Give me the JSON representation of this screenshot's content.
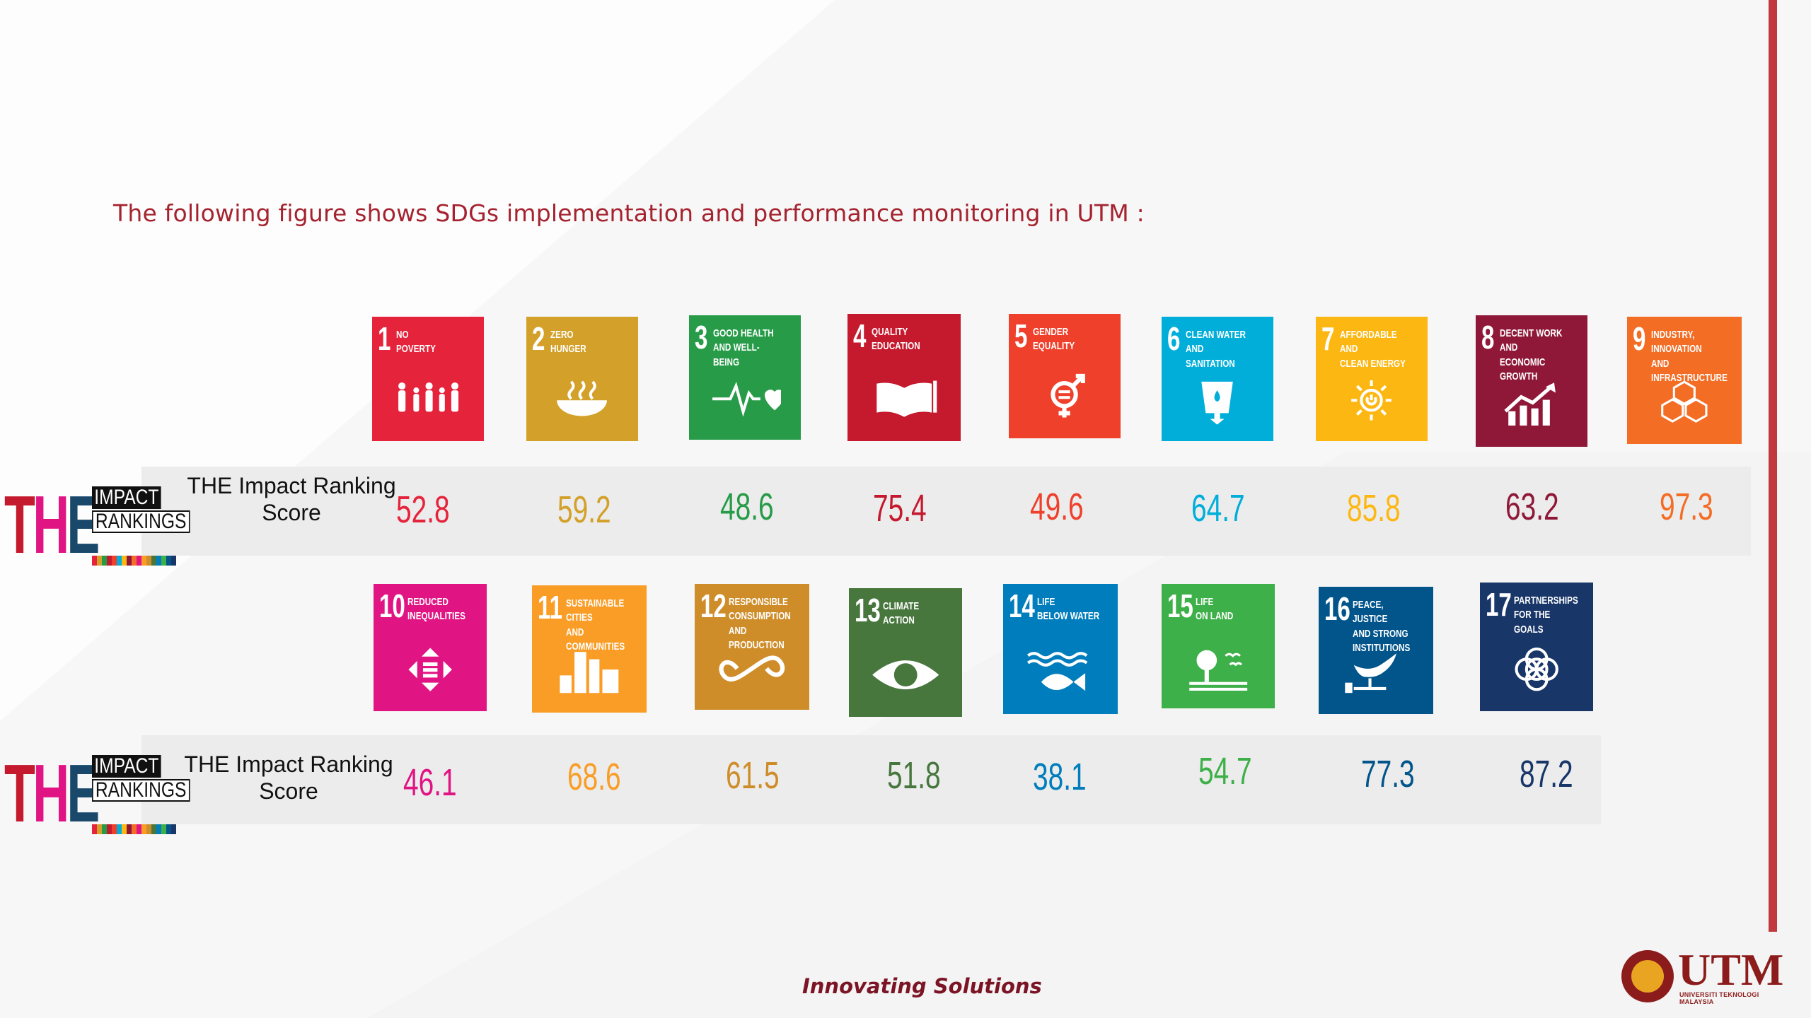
{
  "intro": "The following figure shows SDGs implementation and performance monitoring in UTM :",
  "rank_label": "THE Impact Ranking\nScore",
  "logo": {
    "the": "THE",
    "impact": "IMPACT",
    "rankings": "RANKINGS"
  },
  "sdgs": [
    {
      "num": "1",
      "label": "NO\nPOVERTY",
      "score": "52.8",
      "color": "#e5243b",
      "icon": "family-icon"
    },
    {
      "num": "2",
      "label": "ZERO\nHUNGER",
      "score": "59.2",
      "color": "#d3a029",
      "icon": "bowl-icon"
    },
    {
      "num": "3",
      "label": "GOOD HEALTH\nAND WELL-BEING",
      "score": "48.6",
      "color": "#279b48",
      "icon": "heartbeat-icon"
    },
    {
      "num": "4",
      "label": "QUALITY\nEDUCATION",
      "score": "75.4",
      "color": "#c5192d",
      "icon": "book-icon"
    },
    {
      "num": "5",
      "label": "GENDER\nEQUALITY",
      "score": "49.6",
      "color": "#ef402c",
      "icon": "gender-icon"
    },
    {
      "num": "6",
      "label": "CLEAN WATER\nAND SANITATION",
      "score": "64.7",
      "color": "#00aed9",
      "icon": "water-glass-icon"
    },
    {
      "num": "7",
      "label": "AFFORDABLE AND\nCLEAN ENERGY",
      "score": "85.8",
      "color": "#fdb713",
      "icon": "sun-power-icon"
    },
    {
      "num": "8",
      "label": "DECENT WORK AND\nECONOMIC GROWTH",
      "score": "63.2",
      "color": "#8f1838",
      "icon": "growth-chart-icon"
    },
    {
      "num": "9",
      "label": "INDUSTRY, INNOVATION\nAND INFRASTRUCTURE",
      "score": "97.3",
      "color": "#f36d25",
      "icon": "cubes-icon"
    },
    {
      "num": "10",
      "label": "REDUCED\nINEQUALITIES",
      "score": "46.1",
      "color": "#e11484",
      "icon": "equality-arrows-icon"
    },
    {
      "num": "11",
      "label": "SUSTAINABLE CITIES\nAND COMMUNITIES",
      "score": "68.6",
      "color": "#f99d26",
      "icon": "city-icon"
    },
    {
      "num": "12",
      "label": "RESPONSIBLE\nCONSUMPTION\nAND PRODUCTION",
      "score": "61.5",
      "color": "#cf8d2a",
      "icon": "infinity-icon"
    },
    {
      "num": "13",
      "label": "CLIMATE\nACTION",
      "score": "51.8",
      "color": "#48773e",
      "icon": "eye-globe-icon"
    },
    {
      "num": "14",
      "label": "LIFE\nBELOW WATER",
      "score": "38.1",
      "color": "#007dbc",
      "icon": "fish-icon"
    },
    {
      "num": "15",
      "label": "LIFE\nON LAND",
      "score": "54.7",
      "color": "#3eb049",
      "icon": "tree-icon"
    },
    {
      "num": "16",
      "label": "PEACE, JUSTICE\nAND STRONG\nINSTITUTIONS",
      "score": "77.3",
      "color": "#02558b",
      "icon": "dove-icon"
    },
    {
      "num": "17",
      "label": "PARTNERSHIPS\nFOR THE GOALS",
      "score": "87.2",
      "color": "#183668",
      "icon": "rings-icon"
    }
  ],
  "footer": "Innovating Solutions",
  "brand": {
    "name": "UTM",
    "sub": "UNIVERSITI TEKNOLOGI MALAYSIA"
  }
}
